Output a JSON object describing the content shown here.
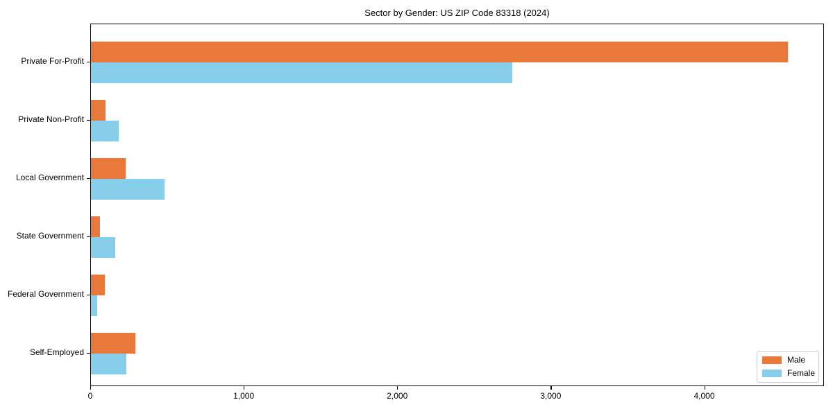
{
  "figure": {
    "background": "#ffffff"
  },
  "chart_data": {
    "type": "bar",
    "orientation": "horizontal",
    "title": "Sector by Gender: US ZIP Code 83318 (2024)",
    "categories": [
      "Private For-Profit",
      "Private Non-Profit",
      "Local Government",
      "State Government",
      "Federal Government",
      "Self-Employed"
    ],
    "series": [
      {
        "name": "Male",
        "color": "#e8793a",
        "values": [
          4550,
          95,
          225,
          60,
          90,
          290
        ]
      },
      {
        "name": "Female",
        "color": "#87ceeb",
        "values": [
          2750,
          180,
          480,
          160,
          40,
          230
        ]
      }
    ],
    "xlabel": "",
    "ylabel": "",
    "xlim": [
      0,
      4780
    ],
    "x_ticks": [
      0,
      1000,
      2000,
      3000,
      4000
    ],
    "x_tick_labels": [
      "0",
      "1,000",
      "2,000",
      "3,000",
      "4,000"
    ],
    "grid": false,
    "legend_position": "lower right",
    "axis_color": "#000000",
    "text_color": "#000000"
  }
}
